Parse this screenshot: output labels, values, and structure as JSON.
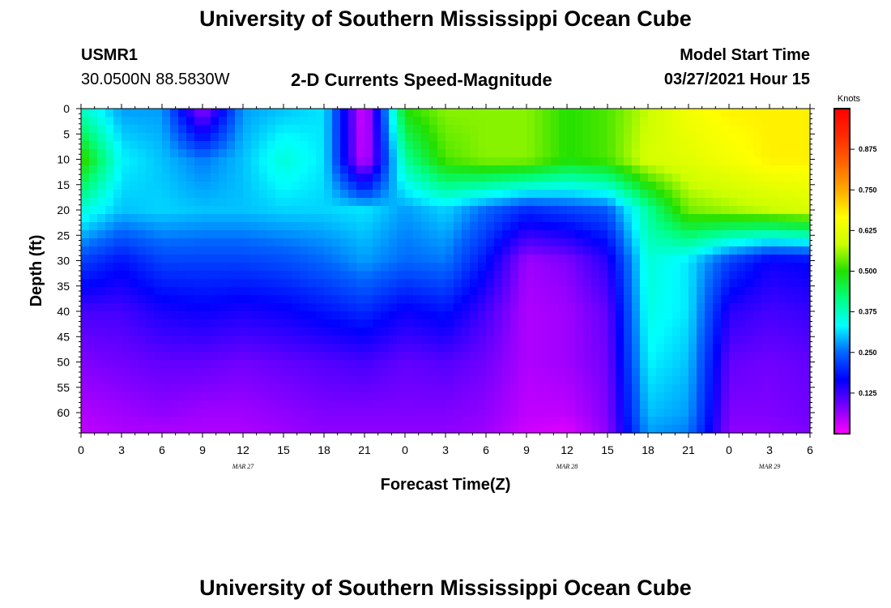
{
  "header": {
    "title": "University of Southern Mississippi Ocean Cube",
    "station": "USMR1",
    "coords": "30.0500N  88.5830W",
    "subtitle": "2-D Currents Speed-Magnitude",
    "model_label": "Model Start Time",
    "model_time": "03/27/2021 Hour 15"
  },
  "footer": {
    "title": "University of Southern Mississippi Ocean Cube"
  },
  "colors": {
    "colorbar_stops": [
      "#ff00ff",
      "#7a00ff",
      "#0000ff",
      "#0066ff",
      "#00ffff",
      "#00ff80",
      "#22e000",
      "#ccff00",
      "#ffff00",
      "#ffaa00",
      "#ff6400",
      "#ff2a00",
      "#ff0000"
    ]
  },
  "chart_data": {
    "type": "heatmap",
    "title": "2-D Currents Speed-Magnitude",
    "xlabel": "Forecast Time(Z)",
    "ylabel": "Depth (ft)",
    "x_tick_labels": [
      "0",
      "3",
      "6",
      "9",
      "12",
      "15",
      "18",
      "21",
      "0",
      "3",
      "6",
      "9",
      "12",
      "15",
      "18",
      "21",
      "0",
      "3",
      "6"
    ],
    "x_day_labels": [
      {
        "label": "MAR 27",
        "hour": 12
      },
      {
        "label": "MAR 28",
        "hour": 36
      },
      {
        "label": "MAR 29",
        "hour": 51
      }
    ],
    "xlim_hours": [
      0,
      54
    ],
    "y_ticks": [
      0,
      5,
      10,
      15,
      20,
      25,
      30,
      35,
      40,
      45,
      50,
      55,
      60
    ],
    "ylim": [
      0,
      64
    ],
    "colorbar": {
      "unit": "Knots",
      "range": [
        0,
        1.0
      ],
      "ticks": [
        0.125,
        0.25,
        0.375,
        0.5,
        0.625,
        0.75,
        0.875
      ],
      "tick_labels": [
        "0.125",
        "0.250",
        "0.375",
        "0.500",
        "0.625",
        "0.750",
        "0.875"
      ]
    },
    "depths_ft": [
      0,
      10,
      20,
      30,
      40,
      50,
      60,
      64
    ],
    "hours": [
      0,
      3,
      6,
      9,
      12,
      15,
      18,
      21,
      24,
      27,
      30,
      33,
      36,
      39,
      42,
      45,
      48,
      51,
      54
    ],
    "values_knots": [
      [
        0.37,
        0.28,
        0.28,
        0.06,
        0.28,
        0.3,
        0.32,
        0.01,
        0.5,
        0.55,
        0.55,
        0.55,
        0.5,
        0.52,
        0.58,
        0.65,
        0.68,
        0.68,
        0.68
      ],
      [
        0.52,
        0.33,
        0.3,
        0.26,
        0.3,
        0.36,
        0.32,
        0.02,
        0.4,
        0.52,
        0.55,
        0.55,
        0.5,
        0.52,
        0.6,
        0.62,
        0.65,
        0.68,
        0.68
      ],
      [
        0.36,
        0.3,
        0.31,
        0.3,
        0.3,
        0.31,
        0.31,
        0.32,
        0.28,
        0.31,
        0.25,
        0.2,
        0.22,
        0.24,
        0.4,
        0.54,
        0.56,
        0.58,
        0.6
      ],
      [
        0.22,
        0.18,
        0.22,
        0.22,
        0.22,
        0.23,
        0.25,
        0.28,
        0.25,
        0.26,
        0.18,
        0.06,
        0.08,
        0.14,
        0.36,
        0.32,
        0.22,
        0.16,
        0.17
      ],
      [
        0.12,
        0.12,
        0.15,
        0.16,
        0.15,
        0.16,
        0.18,
        0.2,
        0.16,
        0.18,
        0.12,
        0.05,
        0.06,
        0.1,
        0.35,
        0.32,
        0.14,
        0.12,
        0.13
      ],
      [
        0.08,
        0.09,
        0.1,
        0.1,
        0.09,
        0.1,
        0.11,
        0.12,
        0.1,
        0.11,
        0.09,
        0.05,
        0.06,
        0.09,
        0.33,
        0.3,
        0.1,
        0.09,
        0.1
      ],
      [
        0.05,
        0.06,
        0.07,
        0.06,
        0.06,
        0.07,
        0.08,
        0.08,
        0.08,
        0.08,
        0.07,
        0.04,
        0.04,
        0.08,
        0.3,
        0.28,
        0.08,
        0.08,
        0.09
      ],
      [
        0.04,
        0.05,
        0.05,
        0.05,
        0.05,
        0.06,
        0.07,
        0.07,
        0.07,
        0.07,
        0.06,
        0.03,
        0.02,
        0.07,
        0.28,
        0.26,
        0.07,
        0.07,
        0.08
      ]
    ]
  }
}
